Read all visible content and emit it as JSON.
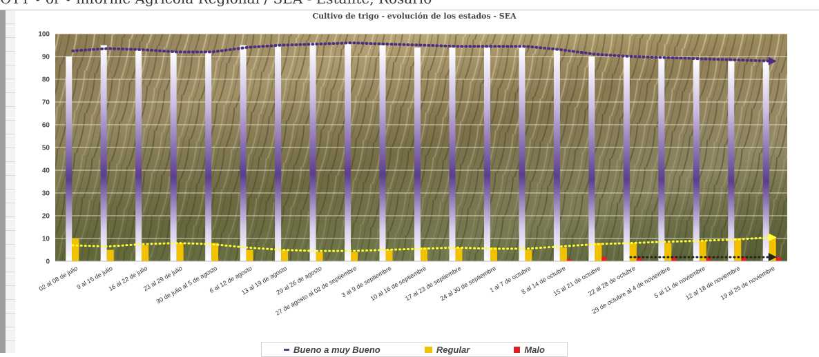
{
  "header_caption": "OTT ∙ or ∙ informe Agrícola Regional / SEA - Estante, Rosario",
  "chart_data": {
    "type": "bar",
    "title": "Cultivo de trigo - evolución de los estados - SEA",
    "xlabel": "",
    "ylabel": "",
    "ylim": [
      0,
      100
    ],
    "yticks": [
      0,
      10,
      20,
      30,
      40,
      50,
      60,
      70,
      80,
      90,
      100
    ],
    "grid": true,
    "legend_position": "bottom",
    "categories": [
      "02 al 08 de julio",
      "9 al 15 de julio",
      "16 al 22 de julio",
      "23 al 29 de julio",
      "30 de julio al 5 de agosto",
      "6 al 12 de agosto",
      "13 al 19 de agosto",
      "20 al 26 de agosto",
      "27 de agosto al 02 de septiembre",
      "3 al 9 de septiembre",
      "10 al 16 de septiembre",
      "17 al 23 de septiembre",
      "24 al 30 de septiembre",
      "1 al 7 de octubre",
      "8 al 14 de octubre",
      "15 al 21 de octubre",
      "22 al 28 de octubre",
      "29 de octubre al 4 de noviembre",
      "5 al 11 de noviembre",
      "12 al 18 de noviembre",
      "19 al 25 de noviembre"
    ],
    "series": [
      {
        "name": "Bueno a muy Bueno",
        "color": "#5c3d8f",
        "values": [
          90,
          95,
          93,
          92,
          92,
          95,
          95,
          96,
          96,
          95,
          94,
          94,
          94,
          95,
          93,
          90,
          90,
          90,
          89,
          88,
          88
        ]
      },
      {
        "name": "Regular",
        "color": "#f2c200",
        "values": [
          10,
          5,
          7,
          8,
          8,
          5,
          5,
          4,
          4,
          5,
          6,
          6,
          6,
          5,
          6,
          8,
          8,
          8,
          9,
          10,
          10
        ]
      },
      {
        "name": "Malo",
        "color": "#e02020",
        "values": [
          0,
          0,
          0,
          0,
          0,
          0,
          0,
          0,
          0,
          0,
          0,
          0,
          0,
          0,
          1,
          2,
          2,
          2,
          2,
          2,
          2
        ]
      }
    ],
    "trendlines": [
      {
        "series": "Bueno a muy Bueno",
        "color": "#4b2e83",
        "values": [
          92.5,
          93.5,
          93,
          92,
          92,
          94,
          95,
          95.5,
          96,
          95.5,
          95,
          94.5,
          94.5,
          94.5,
          93,
          91,
          90,
          89.5,
          89,
          88.5,
          88
        ]
      },
      {
        "series": "Regular",
        "color": "#ffff33",
        "values": [
          7,
          6.5,
          7.5,
          8,
          7.5,
          6,
          5,
          4.5,
          4.5,
          5,
          5.5,
          6,
          5.5,
          5.5,
          6.5,
          7.5,
          8,
          8.5,
          9,
          9.5,
          10.5
        ]
      },
      {
        "series": "Malo",
        "color": "#222222",
        "values": [
          null,
          null,
          null,
          null,
          null,
          null,
          null,
          null,
          null,
          null,
          null,
          null,
          null,
          null,
          null,
          null,
          1.8,
          1.8,
          1.8,
          1.8,
          1.8
        ]
      }
    ]
  }
}
